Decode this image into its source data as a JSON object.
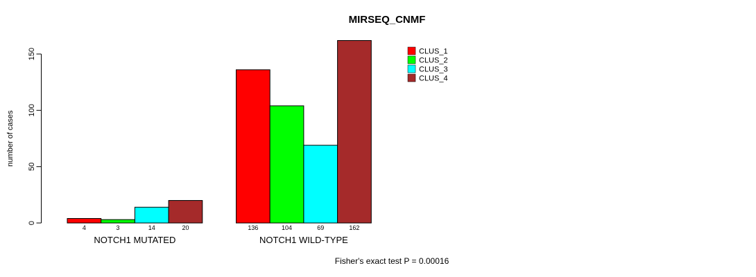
{
  "chart_data": {
    "type": "bar",
    "title": "MIRSEQ_CNMF",
    "ylabel": "number of cases",
    "xlabel": "",
    "ylim": [
      0,
      150
    ],
    "yticks": [
      0,
      50,
      100,
      150
    ],
    "grid": false,
    "legend_position": "top-right",
    "bar_border_color": "#000000",
    "background_color": "#ffffff",
    "categories": [
      "NOTCH1 MUTATED",
      "NOTCH1 WILD-TYPE"
    ],
    "groups": [
      {
        "label": "NOTCH1 MUTATED",
        "values": [
          4,
          3,
          14,
          20
        ]
      },
      {
        "label": "NOTCH1 WILD-TYPE",
        "values": [
          136,
          104,
          69,
          162
        ]
      }
    ],
    "series": [
      {
        "name": "CLUS_1",
        "color": "#ff0000"
      },
      {
        "name": "CLUS_2",
        "color": "#00ff00"
      },
      {
        "name": "CLUS_3",
        "color": "#00ffff"
      },
      {
        "name": "CLUS_4",
        "color": "#a52a2a"
      }
    ],
    "value_labels": [
      4,
      3,
      14,
      20,
      136,
      104,
      69,
      162
    ],
    "annotation": "Fisher's exact test P = 0.00016"
  }
}
